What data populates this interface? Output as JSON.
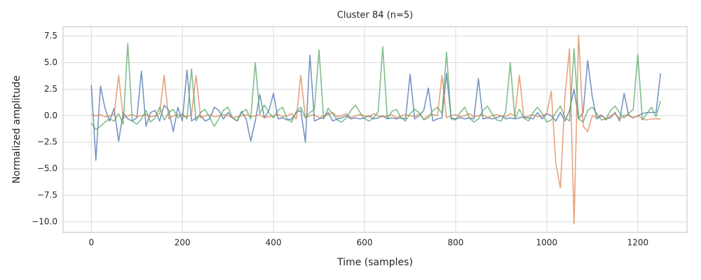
{
  "chart_data": {
    "type": "line",
    "title": "Cluster 84 (n=5)",
    "x_label": "Time (samples)",
    "y_label": "Normalized amplitude",
    "x": [
      0,
      10,
      20,
      30,
      40,
      50,
      60,
      70,
      80,
      90,
      100,
      110,
      120,
      130,
      140,
      150,
      160,
      170,
      180,
      190,
      200,
      210,
      220,
      230,
      240,
      250,
      260,
      270,
      280,
      290,
      300,
      310,
      320,
      330,
      340,
      350,
      360,
      370,
      380,
      390,
      400,
      410,
      420,
      430,
      440,
      450,
      460,
      470,
      480,
      490,
      500,
      510,
      520,
      530,
      540,
      550,
      560,
      570,
      580,
      590,
      600,
      610,
      620,
      630,
      640,
      650,
      660,
      670,
      680,
      690,
      700,
      710,
      720,
      730,
      740,
      750,
      760,
      770,
      780,
      790,
      800,
      810,
      820,
      830,
      840,
      850,
      860,
      870,
      880,
      890,
      900,
      910,
      920,
      930,
      940,
      950,
      960,
      970,
      980,
      990,
      1000,
      1010,
      1020,
      1030,
      1040,
      1050,
      1060,
      1070,
      1080,
      1090,
      1100,
      1110,
      1120,
      1130,
      1140,
      1150,
      1160,
      1170,
      1180,
      1190,
      1200,
      1210,
      1220,
      1230,
      1240,
      1250
    ],
    "series": [
      {
        "color": "#4c72b0",
        "values": [
          2.9,
          -4.2,
          2.8,
          0.7,
          -0.5,
          0.7,
          -2.4,
          0.3,
          -0.3,
          -0.5,
          -0.2,
          4.2,
          -1.0,
          0.3,
          0.5,
          -0.5,
          1.0,
          0.5,
          -1.5,
          0.8,
          -0.5,
          4.3,
          -0.5,
          -0.2,
          0.0,
          -0.5,
          -0.3,
          0.8,
          0.5,
          -0.3,
          0.3,
          -0.2,
          -0.5,
          0.4,
          -0.3,
          -2.4,
          -0.5,
          2.0,
          -0.2,
          0.5,
          2.1,
          -0.3,
          -0.2,
          -0.4,
          -0.3,
          0.3,
          0.5,
          -2.5,
          5.7,
          -0.5,
          -0.3,
          -0.2,
          0.3,
          -0.5,
          -0.3,
          -0.2,
          0.0,
          -0.3,
          -0.2,
          -0.3,
          -0.2,
          0.0,
          -0.3,
          -0.2,
          0.0,
          -0.3,
          -0.2,
          -0.3,
          -0.2,
          -0.3,
          3.9,
          -0.3,
          0.0,
          0.5,
          2.6,
          -0.5,
          -0.3,
          -0.2,
          4.0,
          -0.2,
          -0.3,
          -0.2,
          -0.3,
          -0.2,
          -0.3,
          3.5,
          -0.3,
          -0.2,
          -0.3,
          -0.2,
          0.0,
          -0.3,
          -0.2,
          -0.3,
          -0.2,
          -0.1,
          -0.2,
          -0.3,
          0.3,
          -0.3,
          0.2,
          0.0,
          -0.5,
          0.3,
          -0.5,
          0.5,
          2.5,
          -0.3,
          0.3,
          5.2,
          1.8,
          -0.3,
          0.0,
          -0.3,
          -0.2,
          0.3,
          -0.5,
          2.1,
          0.0,
          -0.2,
          0.0,
          0.2,
          0.3,
          0.3,
          0.3,
          4.0
        ]
      },
      {
        "color": "#dd8452",
        "values": [
          0.1,
          0.0,
          0.1,
          -0.1,
          0.0,
          0.1,
          3.8,
          -0.2,
          0.0,
          0.1,
          -0.1,
          0.0,
          0.1,
          -0.1,
          0.0,
          0.2,
          3.8,
          -0.3,
          0.0,
          0.1,
          0.0,
          -0.1,
          0.1,
          3.8,
          -0.2,
          0.0,
          0.1,
          -0.1,
          0.0,
          0.1,
          0.0,
          -0.2,
          -0.1,
          0.0,
          0.1,
          -0.1,
          0.0,
          0.1,
          -0.2,
          -0.1,
          0.0,
          0.1,
          -0.1,
          0.0,
          0.2,
          -0.3,
          3.8,
          -0.2,
          0.0,
          0.1,
          -0.2,
          0.0,
          0.1,
          0.3,
          -0.1,
          0.0,
          0.2,
          -0.2,
          0.0,
          0.1,
          0.0,
          -0.1,
          0.2,
          0.0,
          -0.1,
          0.0,
          0.1,
          -0.2,
          0.0,
          0.1,
          0.0,
          -0.1,
          0.2,
          -0.3,
          0.0,
          0.1,
          0.0,
          3.8,
          -0.2,
          0.0,
          0.1,
          -0.1,
          0.0,
          0.2,
          -0.1,
          0.0,
          0.1,
          -0.2,
          0.0,
          0.1,
          0.0,
          -0.1,
          0.2,
          0.0,
          3.8,
          -0.3,
          0.0,
          0.1,
          -0.1,
          0.0,
          0.2,
          2.3,
          -4.5,
          -6.8,
          1.8,
          6.3,
          -10.2,
          7.6,
          -1.0,
          -1.5,
          0.0,
          -0.2,
          0.1,
          -0.4,
          0.0,
          0.2,
          -0.3,
          0.0,
          0.1,
          -0.2,
          0.0,
          -0.3,
          -0.4,
          -0.3,
          -0.3,
          -0.3
        ]
      },
      {
        "color": "#55a868",
        "values": [
          -0.7,
          -1.3,
          -1.0,
          -0.6,
          -0.3,
          -0.5,
          0.2,
          -0.8,
          6.8,
          -0.5,
          -0.8,
          -0.3,
          0.5,
          -0.6,
          -0.2,
          0.8,
          -0.4,
          0.3,
          0.6,
          -0.2,
          0.2,
          -0.3,
          4.4,
          -0.5,
          0.3,
          0.6,
          -0.2,
          -1.0,
          -0.3,
          0.5,
          0.8,
          -0.2,
          -0.5,
          0.3,
          0.6,
          -0.3,
          5.0,
          0.2,
          1.0,
          0.3,
          -0.2,
          0.5,
          0.8,
          -0.3,
          -0.6,
          0.4,
          0.8,
          -0.2,
          0.3,
          0.6,
          6.2,
          -0.3,
          0.7,
          0.2,
          -0.4,
          -0.6,
          -0.2,
          0.5,
          1.0,
          0.3,
          -0.3,
          -0.5,
          -0.2,
          0.4,
          6.5,
          -0.3,
          0.4,
          0.6,
          -0.2,
          -0.5,
          0.2,
          0.6,
          0.3,
          -0.4,
          -0.2,
          0.5,
          0.8,
          0.2,
          6.0,
          -0.3,
          -0.4,
          0.3,
          0.8,
          -0.2,
          -0.6,
          -0.3,
          0.5,
          0.9,
          0.2,
          -0.4,
          -0.5,
          0.4,
          5.0,
          -0.3,
          0.6,
          -0.2,
          -0.5,
          0.3,
          0.8,
          0.2,
          -0.6,
          -0.4,
          0.3,
          0.9,
          -0.2,
          -0.5,
          6.3,
          -0.3,
          -0.6,
          0.5,
          0.8,
          0.2,
          -0.4,
          -0.3,
          0.5,
          0.9,
          0.3,
          -0.2,
          0.2,
          0.6,
          5.8,
          -0.4,
          0.2,
          0.8,
          -0.1,
          1.4
        ]
      }
    ],
    "xlim": [
      -62,
      1308
    ],
    "xticks": [
      0,
      200,
      400,
      600,
      800,
      1000,
      1200
    ],
    "ylim": [
      -11.0,
      8.4
    ],
    "yticks": [
      {
        "value": -10,
        "label": "−10.0"
      },
      {
        "value": -7.5,
        "label": "−7.5"
      },
      {
        "value": -5,
        "label": "−5.0"
      },
      {
        "value": -2.5,
        "label": "−2.5"
      },
      {
        "value": 0,
        "label": "0.0"
      },
      {
        "value": 2.5,
        "label": "2.5"
      },
      {
        "value": 5,
        "label": "5.0"
      },
      {
        "value": 7.5,
        "label": "7.5"
      }
    ],
    "grid": true
  }
}
